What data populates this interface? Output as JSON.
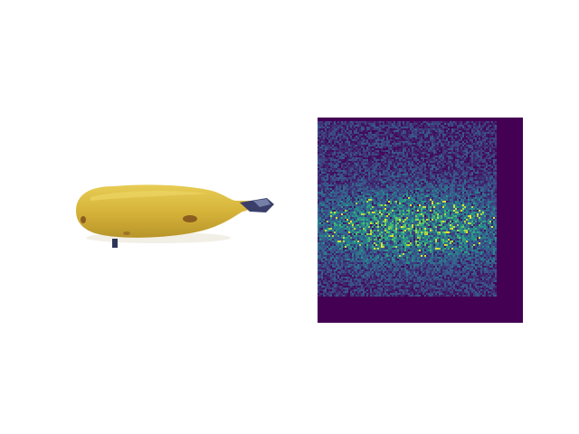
{
  "figure": {
    "panels": [
      {
        "kind": "photo",
        "subject": "banana"
      },
      {
        "kind": "saliency-heatmap",
        "colormap": "viridis",
        "colors": {
          "background": "#440154",
          "mid": "#31688e",
          "high": "#35b779",
          "peak": "#fde725"
        }
      }
    ]
  },
  "colors": {
    "banana_main": "#d6b43a",
    "banana_shadow": "#b8952a",
    "banana_highlight": "#e7cc55",
    "banana_tip": "#3a3f6a",
    "banana_spot": "#7a4a1a"
  }
}
